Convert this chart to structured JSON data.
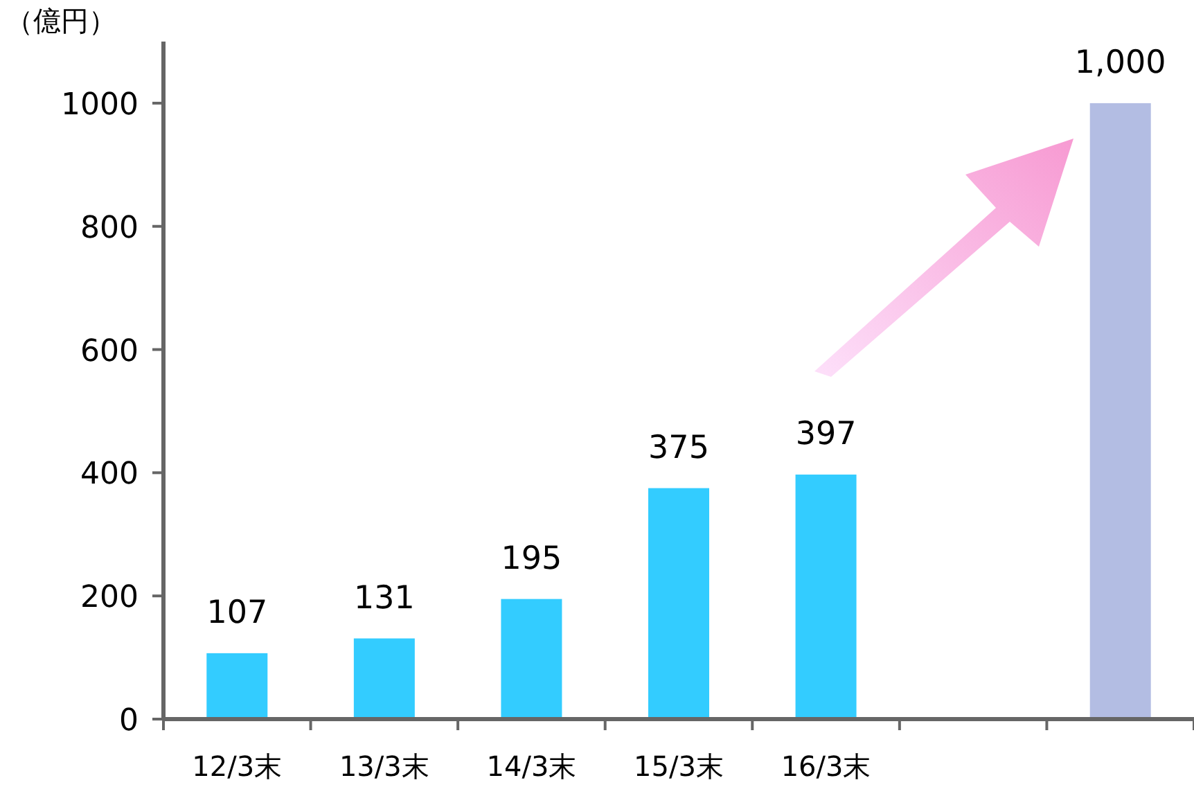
{
  "chart_data": {
    "type": "bar",
    "ylabel": "（億円）",
    "categories": [
      "12/3末",
      "13/3末",
      "14/3末",
      "15/3末",
      "16/3末",
      null,
      null
    ],
    "values": [
      107,
      131,
      195,
      375,
      397,
      null,
      1000
    ],
    "colors": [
      "#33ccff",
      "#33ccff",
      "#33ccff",
      "#33ccff",
      "#33ccff",
      null,
      "#b3bde3"
    ],
    "value_labels": [
      "107",
      "131",
      "195",
      "375",
      "397",
      null,
      "1,000"
    ],
    "ylim": [
      0,
      1100
    ],
    "yticks": [
      0,
      200,
      400,
      600,
      800,
      1000
    ],
    "grid": false
  }
}
